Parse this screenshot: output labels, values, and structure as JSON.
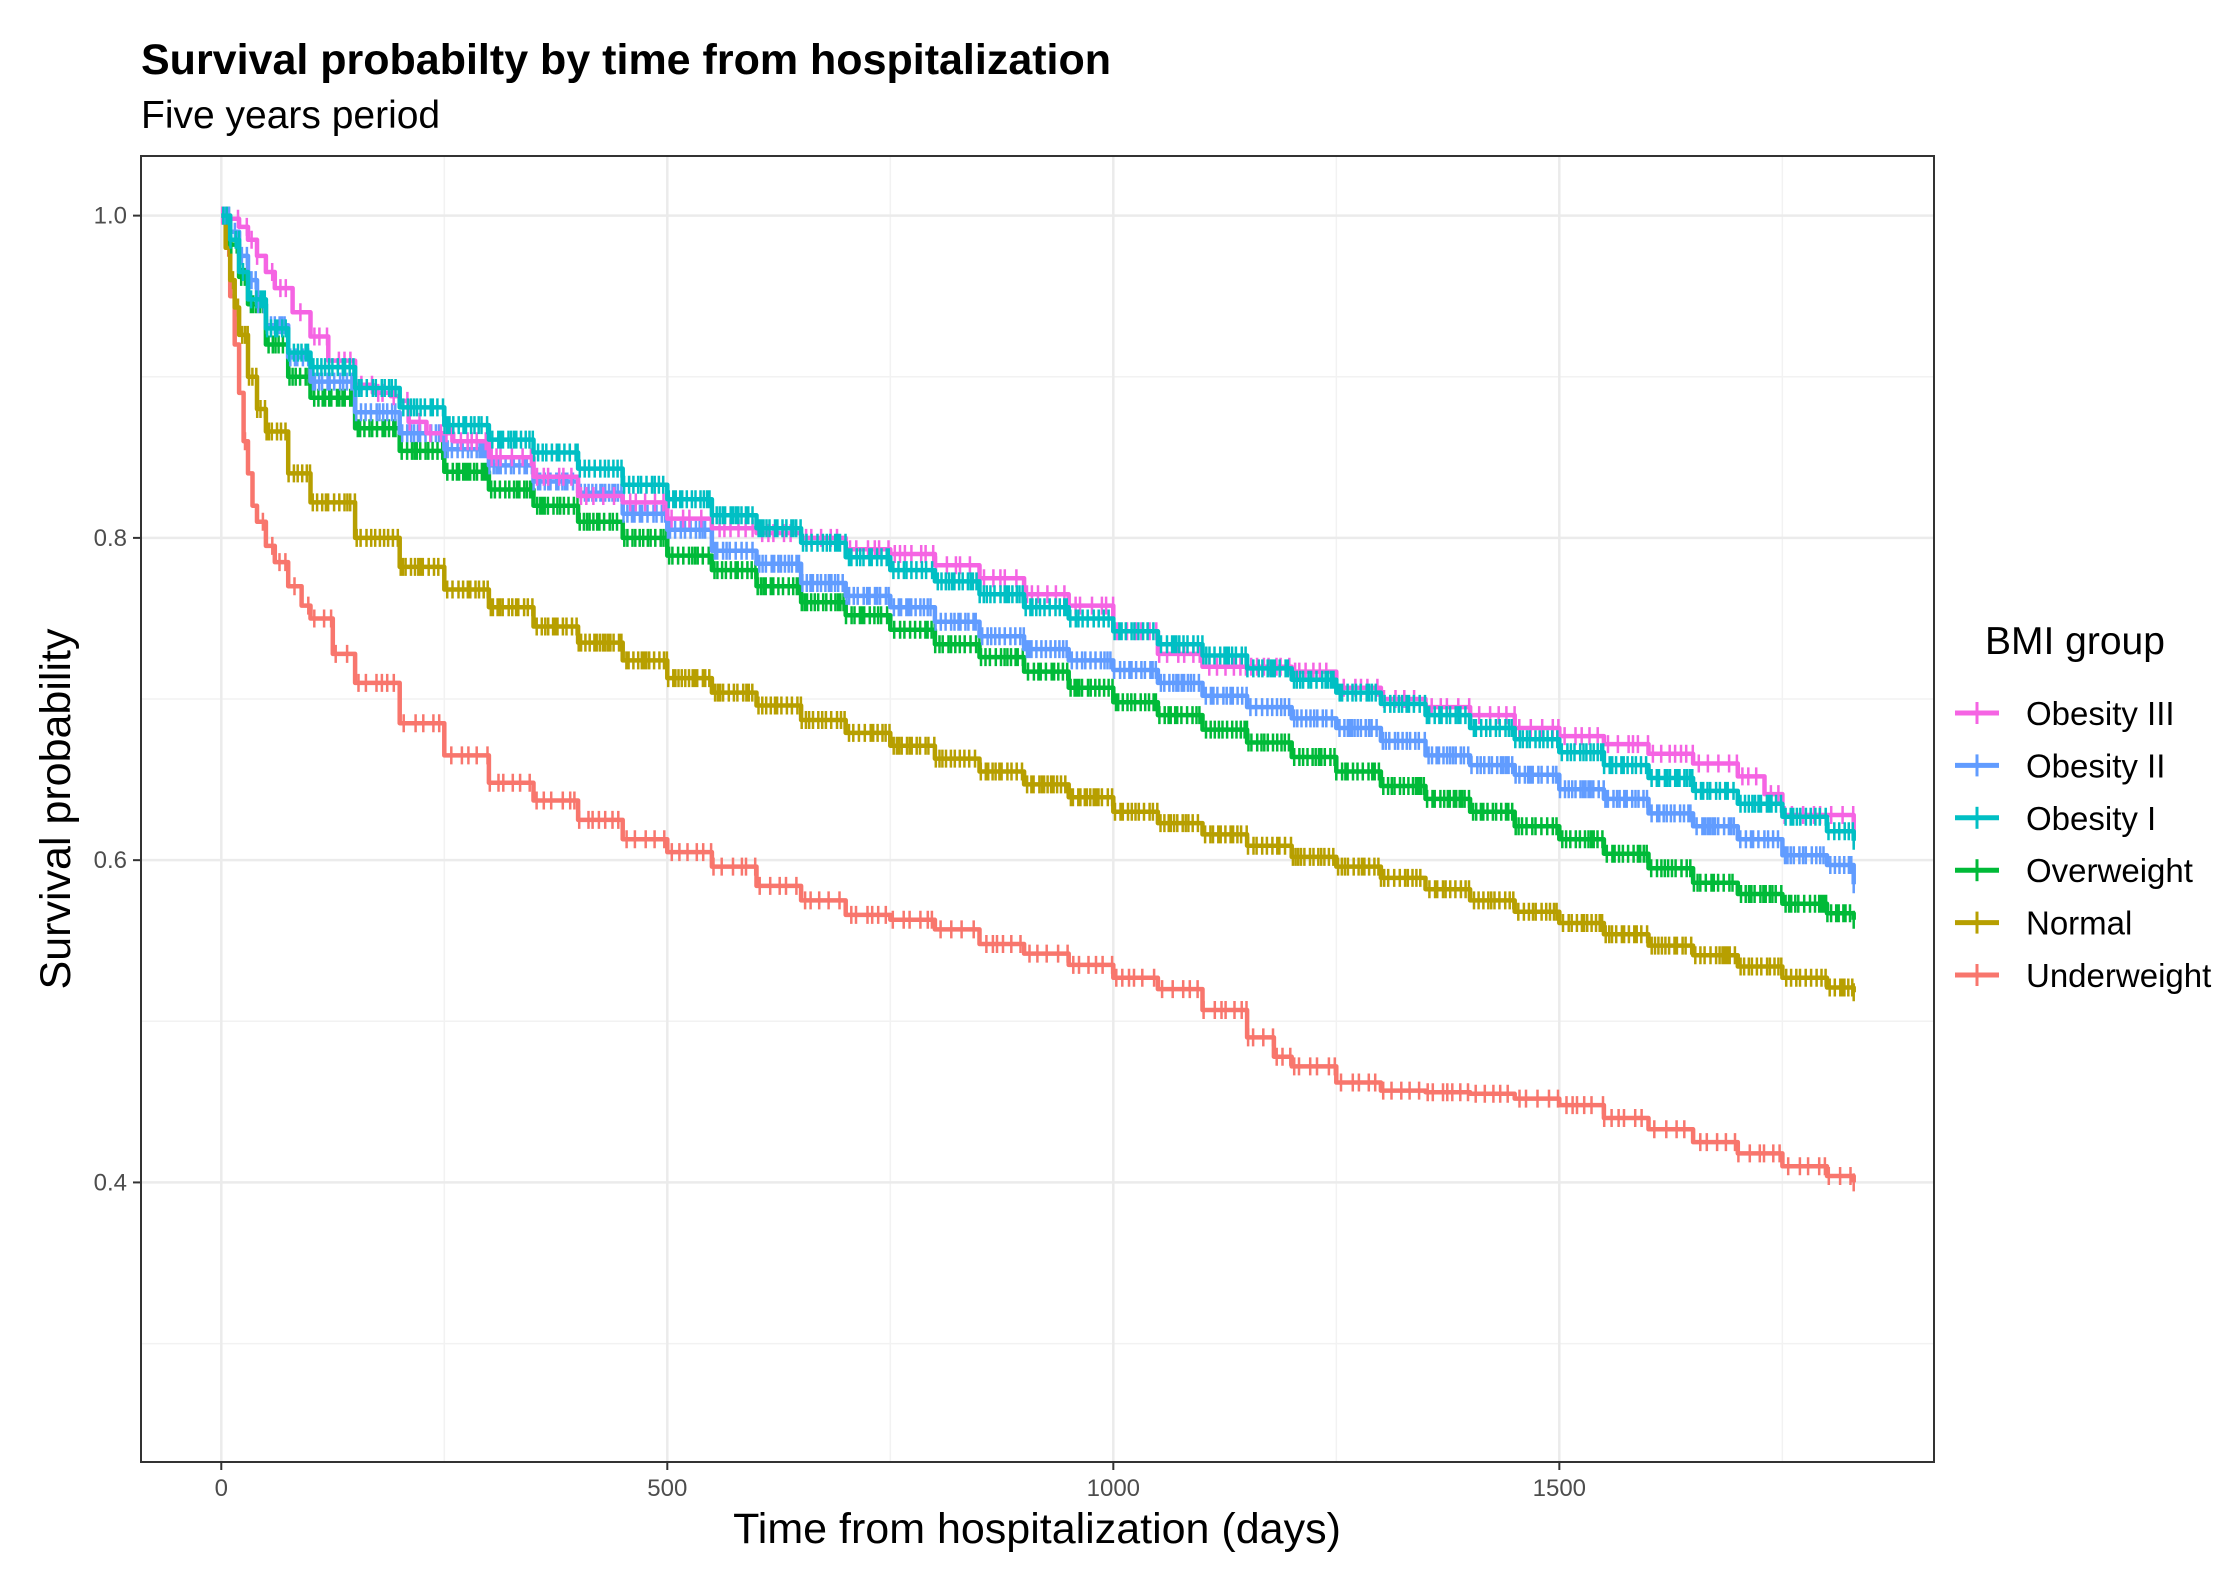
{
  "chart_data": {
    "type": "line",
    "title": "Survival probabilty by time from hospitalization",
    "subtitle": "Five years period",
    "xlabel": "Time from hospitalization (days)",
    "ylabel": "Survival probability",
    "xlim": [
      -90,
      1920
    ],
    "ylim": [
      0.2265,
      1.037
    ],
    "x_ticks": [
      0,
      500,
      1000,
      1500
    ],
    "x_tick_labels": [
      "0",
      "500",
      "1000",
      "1500"
    ],
    "x_minor_ticks": [
      250,
      750,
      1250,
      1750
    ],
    "y_ticks": [
      0.4,
      0.6,
      0.8,
      1.0
    ],
    "y_tick_labels": [
      "0.4",
      "0.6",
      "0.8",
      "1.0"
    ],
    "y_minor_ticks": [
      0.3,
      0.5,
      0.7,
      0.9
    ],
    "grid": true,
    "legend": {
      "title": "BMI group",
      "position": "right",
      "entries": [
        "Obesity III",
        "Obesity II",
        "Obesity I",
        "Overweight",
        "Normal",
        "Underweight"
      ]
    },
    "series": [
      {
        "name": "Obesity III",
        "color": "#F564E3",
        "x": [
          0,
          10,
          20,
          30,
          40,
          50,
          60,
          80,
          100,
          120,
          150,
          170,
          190,
          200,
          210,
          230,
          260,
          300,
          350,
          400,
          450,
          500,
          550,
          600,
          650,
          700,
          750,
          800,
          850,
          900,
          950,
          1000,
          1050,
          1100,
          1150,
          1200,
          1250,
          1300,
          1350,
          1400,
          1450,
          1500,
          1550,
          1600,
          1650,
          1700,
          1730,
          1750,
          1830
        ],
        "values": [
          1.0,
          0.998,
          0.993,
          0.985,
          0.975,
          0.965,
          0.955,
          0.94,
          0.925,
          0.91,
          0.895,
          0.89,
          0.888,
          0.885,
          0.872,
          0.865,
          0.86,
          0.85,
          0.838,
          0.826,
          0.822,
          0.812,
          0.806,
          0.803,
          0.8,
          0.793,
          0.79,
          0.783,
          0.775,
          0.765,
          0.758,
          0.742,
          0.728,
          0.72,
          0.72,
          0.717,
          0.707,
          0.7,
          0.695,
          0.69,
          0.682,
          0.677,
          0.672,
          0.666,
          0.66,
          0.652,
          0.641,
          0.628,
          0.614
        ]
      },
      {
        "name": "Obesity II",
        "color": "#619CFF",
        "x": [
          0,
          10,
          20,
          30,
          40,
          50,
          75,
          100,
          150,
          200,
          250,
          300,
          350,
          400,
          450,
          500,
          550,
          600,
          650,
          700,
          750,
          800,
          850,
          900,
          950,
          1000,
          1050,
          1100,
          1150,
          1200,
          1250,
          1300,
          1350,
          1400,
          1450,
          1500,
          1550,
          1600,
          1650,
          1700,
          1750,
          1800,
          1830
        ],
        "values": [
          1.0,
          0.99,
          0.975,
          0.96,
          0.945,
          0.932,
          0.912,
          0.897,
          0.878,
          0.865,
          0.855,
          0.845,
          0.835,
          0.828,
          0.815,
          0.805,
          0.792,
          0.784,
          0.772,
          0.764,
          0.757,
          0.748,
          0.739,
          0.731,
          0.724,
          0.718,
          0.71,
          0.702,
          0.695,
          0.688,
          0.682,
          0.674,
          0.665,
          0.659,
          0.653,
          0.644,
          0.638,
          0.629,
          0.621,
          0.613,
          0.603,
          0.597,
          0.585
        ]
      },
      {
        "name": "Obesity I",
        "color": "#00BFC4",
        "x": [
          0,
          10,
          20,
          30,
          50,
          75,
          100,
          150,
          200,
          250,
          300,
          350,
          400,
          450,
          500,
          550,
          600,
          650,
          700,
          750,
          800,
          850,
          900,
          950,
          1000,
          1050,
          1100,
          1150,
          1200,
          1250,
          1300,
          1350,
          1400,
          1450,
          1500,
          1550,
          1600,
          1650,
          1700,
          1750,
          1800,
          1830
        ],
        "values": [
          1.0,
          0.985,
          0.965,
          0.948,
          0.93,
          0.915,
          0.906,
          0.893,
          0.881,
          0.87,
          0.861,
          0.853,
          0.843,
          0.833,
          0.824,
          0.814,
          0.806,
          0.797,
          0.788,
          0.78,
          0.773,
          0.765,
          0.757,
          0.75,
          0.742,
          0.734,
          0.727,
          0.719,
          0.712,
          0.704,
          0.697,
          0.69,
          0.682,
          0.675,
          0.667,
          0.659,
          0.651,
          0.643,
          0.635,
          0.627,
          0.618,
          0.612
        ]
      },
      {
        "name": "Overweight",
        "color": "#00BA38",
        "x": [
          0,
          10,
          20,
          30,
          50,
          75,
          100,
          150,
          200,
          250,
          300,
          350,
          400,
          450,
          500,
          550,
          600,
          650,
          700,
          750,
          800,
          850,
          900,
          950,
          1000,
          1050,
          1100,
          1150,
          1200,
          1250,
          1300,
          1350,
          1400,
          1450,
          1500,
          1550,
          1600,
          1650,
          1700,
          1750,
          1800,
          1830
        ],
        "values": [
          1.0,
          0.982,
          0.962,
          0.945,
          0.92,
          0.9,
          0.887,
          0.868,
          0.854,
          0.841,
          0.83,
          0.82,
          0.81,
          0.8,
          0.789,
          0.78,
          0.77,
          0.76,
          0.752,
          0.743,
          0.734,
          0.726,
          0.717,
          0.707,
          0.698,
          0.69,
          0.681,
          0.673,
          0.664,
          0.655,
          0.646,
          0.638,
          0.63,
          0.621,
          0.613,
          0.604,
          0.595,
          0.586,
          0.579,
          0.573,
          0.567,
          0.563
        ]
      },
      {
        "name": "Normal",
        "color": "#B79F00",
        "x": [
          0,
          5,
          10,
          15,
          20,
          30,
          40,
          50,
          75,
          100,
          150,
          200,
          250,
          300,
          350,
          400,
          450,
          500,
          550,
          600,
          650,
          700,
          750,
          800,
          850,
          900,
          950,
          1000,
          1050,
          1100,
          1150,
          1200,
          1250,
          1300,
          1350,
          1400,
          1450,
          1500,
          1550,
          1600,
          1650,
          1700,
          1750,
          1800,
          1830
        ],
        "values": [
          1.0,
          0.98,
          0.96,
          0.943,
          0.926,
          0.9,
          0.88,
          0.866,
          0.84,
          0.822,
          0.8,
          0.782,
          0.768,
          0.757,
          0.745,
          0.735,
          0.724,
          0.713,
          0.704,
          0.696,
          0.687,
          0.679,
          0.671,
          0.663,
          0.655,
          0.647,
          0.639,
          0.63,
          0.623,
          0.616,
          0.609,
          0.602,
          0.596,
          0.589,
          0.582,
          0.575,
          0.568,
          0.561,
          0.554,
          0.547,
          0.541,
          0.534,
          0.527,
          0.521,
          0.518
        ]
      },
      {
        "name": "Underweight",
        "color": "#F8766D",
        "x": [
          0,
          5,
          10,
          15,
          20,
          25,
          30,
          35,
          40,
          50,
          60,
          75,
          90,
          100,
          125,
          150,
          200,
          250,
          300,
          350,
          400,
          450,
          500,
          550,
          600,
          650,
          700,
          750,
          780,
          800,
          850,
          900,
          950,
          1000,
          1050,
          1100,
          1150,
          1180,
          1200,
          1250,
          1300,
          1350,
          1400,
          1450,
          1500,
          1550,
          1600,
          1650,
          1700,
          1750,
          1800,
          1830
        ],
        "values": [
          1.0,
          0.98,
          0.95,
          0.92,
          0.89,
          0.86,
          0.84,
          0.82,
          0.81,
          0.795,
          0.785,
          0.77,
          0.758,
          0.75,
          0.728,
          0.71,
          0.685,
          0.665,
          0.648,
          0.637,
          0.625,
          0.613,
          0.605,
          0.596,
          0.584,
          0.575,
          0.566,
          0.563,
          0.563,
          0.557,
          0.548,
          0.542,
          0.535,
          0.527,
          0.52,
          0.507,
          0.49,
          0.478,
          0.472,
          0.462,
          0.457,
          0.456,
          0.455,
          0.452,
          0.448,
          0.44,
          0.433,
          0.425,
          0.418,
          0.41,
          0.404,
          0.4
        ]
      }
    ]
  }
}
